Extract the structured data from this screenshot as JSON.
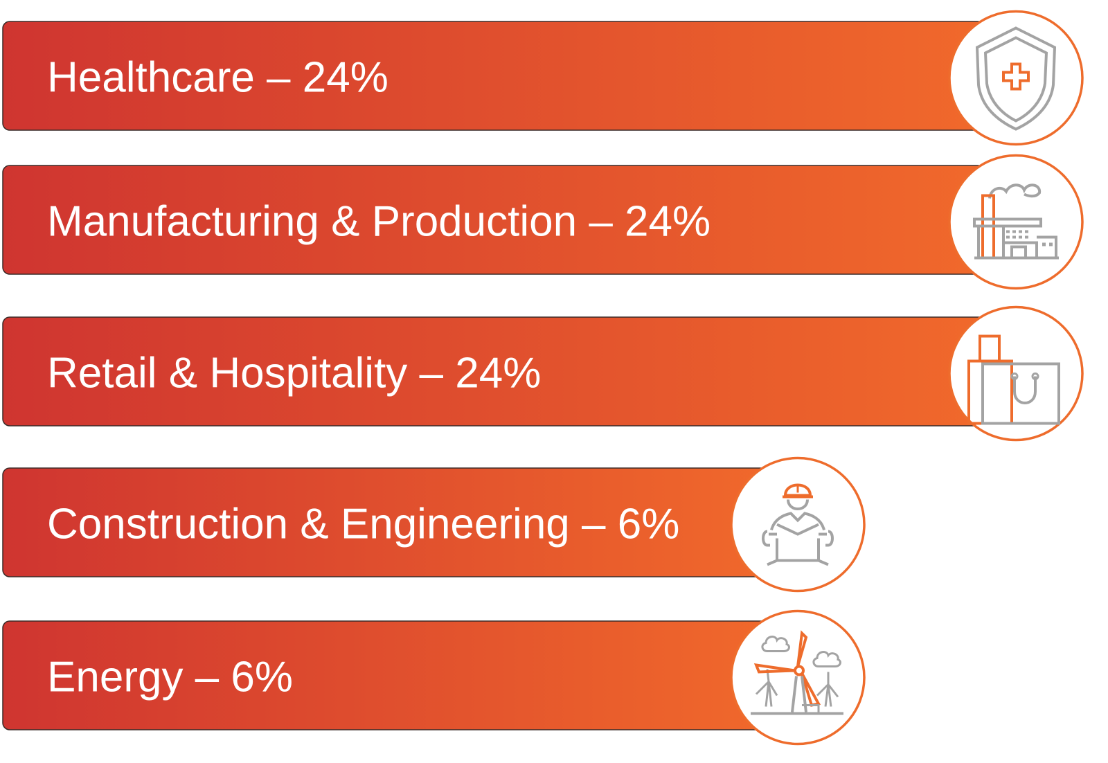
{
  "colors": {
    "gradient_start": "#cf3530",
    "gradient_end": "#f26b2b",
    "bar_edge": "#3a2b28",
    "circle_border": "#ee6c2c",
    "icon_gray": "#a3a3a3",
    "icon_accent": "#ee6c2c",
    "label_text": "#ffffff"
  },
  "chart_data": {
    "type": "bar",
    "orientation": "horizontal",
    "unit": "%",
    "categories": [
      "Healthcare",
      "Manufacturing & Production",
      "Retail & Hospitality",
      "Construction & Engineering",
      "Energy"
    ],
    "values": [
      24,
      24,
      24,
      6,
      6
    ],
    "labels": [
      "Healthcare – 24%",
      "Manufacturing & Production – 24%",
      "Retail & Hospitality – 24%",
      "Construction & Engineering – 6%",
      "Energy – 6%"
    ],
    "icons": [
      "shield-medical-icon",
      "factory-icon",
      "shopping-bag-icon",
      "construction-worker-icon",
      "wind-turbine-icon"
    ],
    "grid": false,
    "legend": "none"
  }
}
